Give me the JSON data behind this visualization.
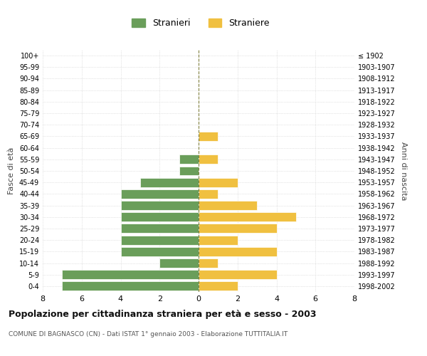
{
  "age_groups": [
    "100+",
    "95-99",
    "90-94",
    "85-89",
    "80-84",
    "75-79",
    "70-74",
    "65-69",
    "60-64",
    "55-59",
    "50-54",
    "45-49",
    "40-44",
    "35-39",
    "30-34",
    "25-29",
    "20-24",
    "15-19",
    "10-14",
    "5-9",
    "0-4"
  ],
  "birth_years": [
    "≤ 1902",
    "1903-1907",
    "1908-1912",
    "1913-1917",
    "1918-1922",
    "1923-1927",
    "1928-1932",
    "1933-1937",
    "1938-1942",
    "1943-1947",
    "1948-1952",
    "1953-1957",
    "1958-1962",
    "1963-1967",
    "1968-1972",
    "1973-1977",
    "1978-1982",
    "1983-1987",
    "1988-1992",
    "1993-1997",
    "1998-2002"
  ],
  "males": [
    0,
    0,
    0,
    0,
    0,
    0,
    0,
    0,
    0,
    1,
    1,
    3,
    4,
    4,
    4,
    4,
    4,
    4,
    2,
    7,
    7
  ],
  "females": [
    0,
    0,
    0,
    0,
    0,
    0,
    0,
    1,
    0,
    1,
    0,
    2,
    1,
    3,
    5,
    4,
    2,
    4,
    1,
    4,
    2
  ],
  "male_color": "#6a9e5a",
  "female_color": "#f0c040",
  "title": "Popolazione per cittadinanza straniera per età e sesso - 2003",
  "subtitle": "COMUNE DI BAGNASCO (CN) - Dati ISTAT 1° gennaio 2003 - Elaborazione TUTTITALIA.IT",
  "legend_male": "Stranieri",
  "legend_female": "Straniere",
  "ylabel_left": "Fasce di età",
  "ylabel_right": "Anni di nascita",
  "xlim": 8,
  "background_color": "#ffffff",
  "grid_color": "#cccccc"
}
